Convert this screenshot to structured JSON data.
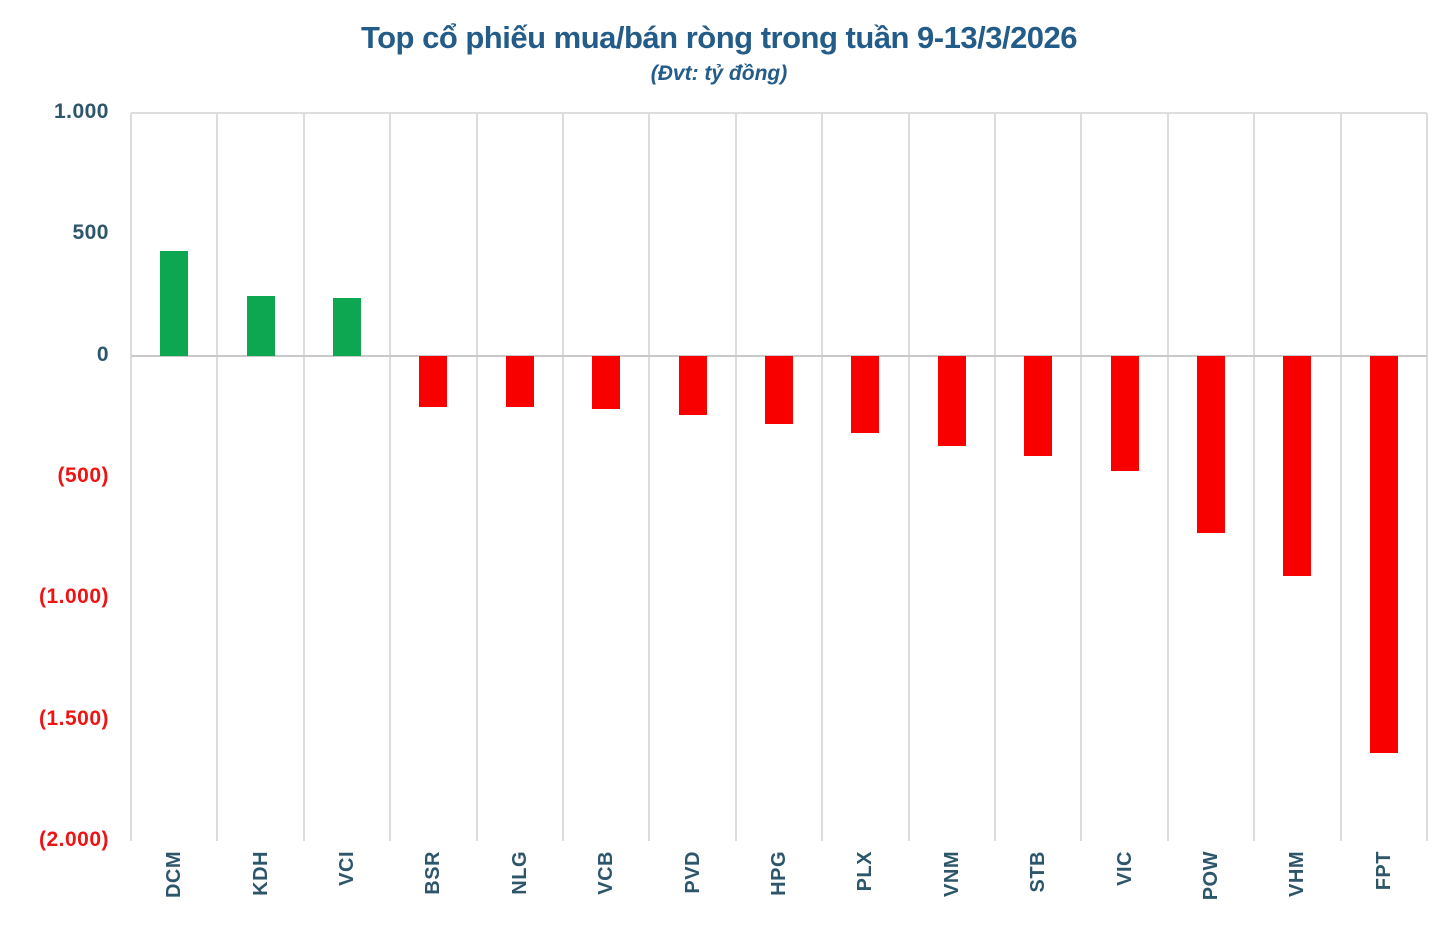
{
  "header": {
    "title": "Top cổ phiếu mua/bán ròng trong tuần 9-13/3/2026",
    "subtitle": "(Đvt: tỷ đồng)"
  },
  "colors": {
    "title": "#235C88",
    "axis_label": "#2E566B",
    "negative_label": "#EE1414",
    "gridline": "#DCDCDC",
    "zero_line": "#C9C9C9",
    "plot_top_border": "#DDDDDD",
    "bar_positive": "#0CA750",
    "bar_negative": "#F80000",
    "background": "#FFFFFF"
  },
  "chart_data": {
    "type": "bar",
    "title": "Top cổ phiếu mua/bán ròng trong tuần 9-13/3/2026",
    "subtitle": "(Đvt: tỷ đồng)",
    "unit": "tỷ đồng",
    "categories": [
      "DCM",
      "KDH",
      "VCI",
      "BSR",
      "NLG",
      "VCB",
      "PVD",
      "HPG",
      "PLX",
      "VNM",
      "STB",
      "VIC",
      "POW",
      "VHM",
      "FPT"
    ],
    "values": [
      432,
      246,
      238,
      -210,
      -212,
      -220,
      -245,
      -283,
      -317,
      -372,
      -412,
      -474,
      -731,
      -910,
      -1638
    ],
    "ylim": [
      -2000,
      1000
    ],
    "yticks": [
      {
        "value": 1000,
        "label": "1.000"
      },
      {
        "value": 500,
        "label": "500"
      },
      {
        "value": 0,
        "label": "0"
      },
      {
        "value": -500,
        "label": "(500)"
      },
      {
        "value": -1000,
        "label": "(1.000)"
      },
      {
        "value": -1500,
        "label": "(1.500)"
      },
      {
        "value": -2000,
        "label": "(2.000)"
      }
    ],
    "grid": {
      "vertical": true,
      "horizontal": false
    },
    "legend_position": "none",
    "xlabel_rotation": -90
  }
}
